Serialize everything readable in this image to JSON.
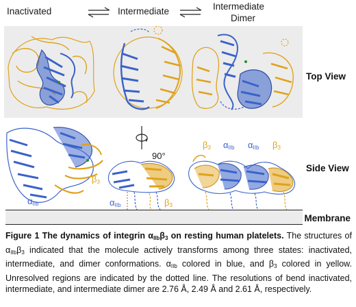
{
  "states": {
    "inactivated": "Inactivated",
    "intermediate": "Intermediate",
    "dimer_line1": "Intermediate",
    "dimer_line2": "Dimer"
  },
  "views": {
    "top": "Top View",
    "side": "Side View",
    "membrane": "Membrane"
  },
  "rotation": "90°",
  "chains": {
    "alpha_prefix": "α",
    "alpha_sub": "IIb",
    "beta_prefix": "β",
    "beta_sub": "3"
  },
  "caption": {
    "title_1": "Figure 1 The dynamics of integrin α",
    "title_sub_1": "IIb",
    "title_2": "β",
    "title_sub_2": "3",
    "title_3": " on resting human platelets.",
    "body_1": " The structures of α",
    "body_sub_1": "IIb",
    "body_2": "β",
    "body_sub_2": "3",
    "body_3": " indicated that the molecule actively transforms among three states: inactivated, intermediate, and dimer conformations. α",
    "body_sub_3": "IIb",
    "body_4": " colored in blue, and β",
    "body_sub_4": "3",
    "body_5": " colored in yellow. Unresolved regions are indicated by the dotted line. The resolutions of bend inactivated, intermediate, and intermediate dimer are 2.76 Å, 2.49 Å and 2.61 Å, respectively."
  },
  "colors": {
    "alpha_blue": "#3a62c9",
    "beta_yellow": "#e0a21c",
    "panel_gray": "#ececec"
  }
}
